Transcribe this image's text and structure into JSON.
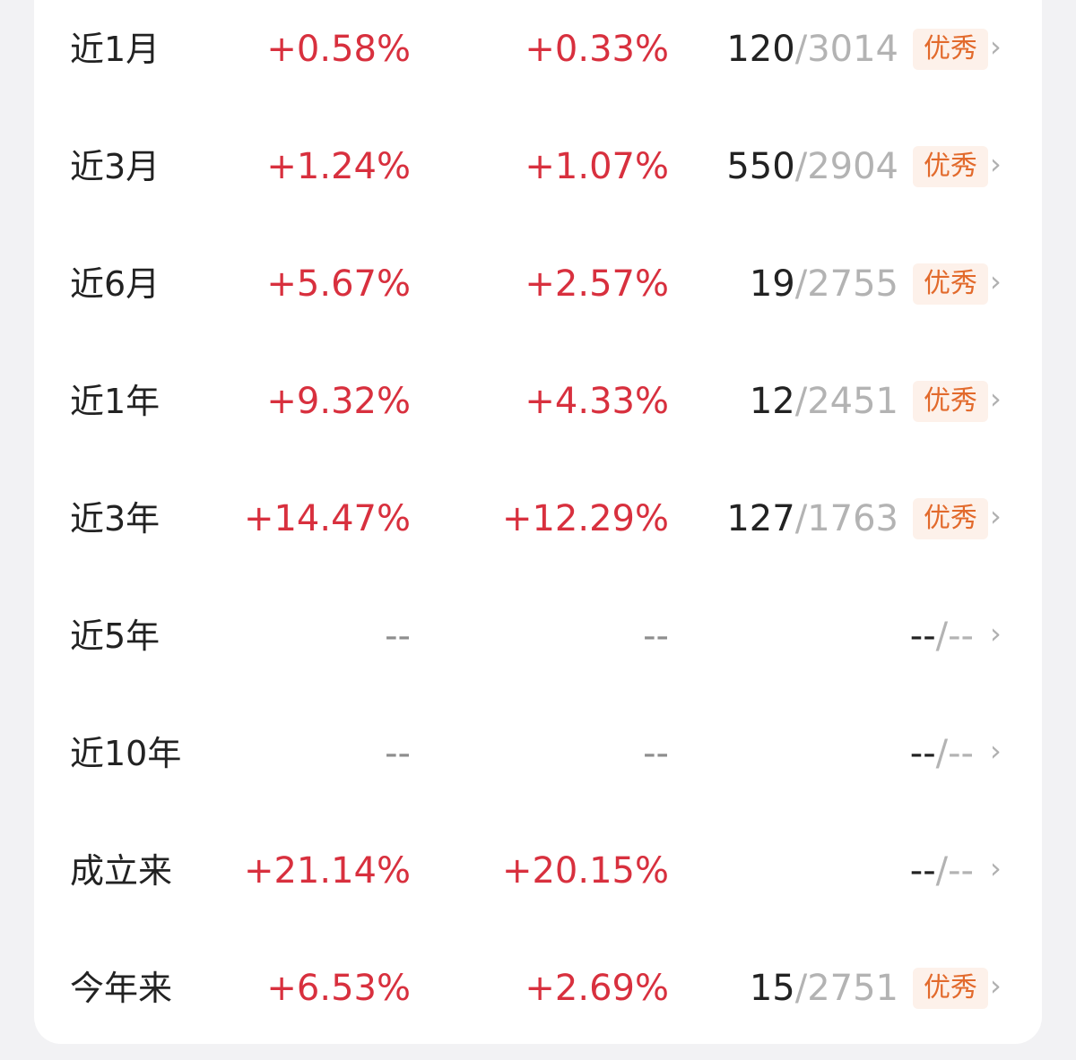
{
  "rows": [
    {
      "period": "近1月",
      "return": "+0.58%",
      "avg": "+0.33%",
      "rank": "120",
      "sep": "/",
      "total": "3014",
      "badge": "优秀"
    },
    {
      "period": "近3月",
      "return": "+1.24%",
      "avg": "+1.07%",
      "rank": "550",
      "sep": "/",
      "total": "2904",
      "badge": "优秀"
    },
    {
      "period": "近6月",
      "return": "+5.67%",
      "avg": "+2.57%",
      "rank": "19",
      "sep": "/",
      "total": "2755",
      "badge": "优秀"
    },
    {
      "period": "近1年",
      "return": "+9.32%",
      "avg": "+4.33%",
      "rank": "12",
      "sep": "/",
      "total": "2451",
      "badge": "优秀"
    },
    {
      "period": "近3年",
      "return": "+14.47%",
      "avg": "+12.29%",
      "rank": "127",
      "sep": "/",
      "total": "1763",
      "badge": "优秀"
    },
    {
      "period": "近5年",
      "return": "--",
      "avg": "--",
      "rank": "--",
      "sep": "/",
      "total": "--",
      "badge": ""
    },
    {
      "period": "近10年",
      "return": "--",
      "avg": "--",
      "rank": "--",
      "sep": "/",
      "total": "--",
      "badge": ""
    },
    {
      "period": "成立来",
      "return": "+21.14%",
      "avg": "+20.15%",
      "rank": "--",
      "sep": "/",
      "total": "--",
      "badge": ""
    },
    {
      "period": "今年来",
      "return": "+6.53%",
      "avg": "+2.69%",
      "rank": "15",
      "sep": "/",
      "total": "2751",
      "badge": "优秀"
    }
  ],
  "chevron": "›",
  "colors": {
    "positive": "#d8303e",
    "muted": "#8e8e8e",
    "badge_text": "#e26a2c",
    "badge_bg": "#fdf1ea"
  }
}
